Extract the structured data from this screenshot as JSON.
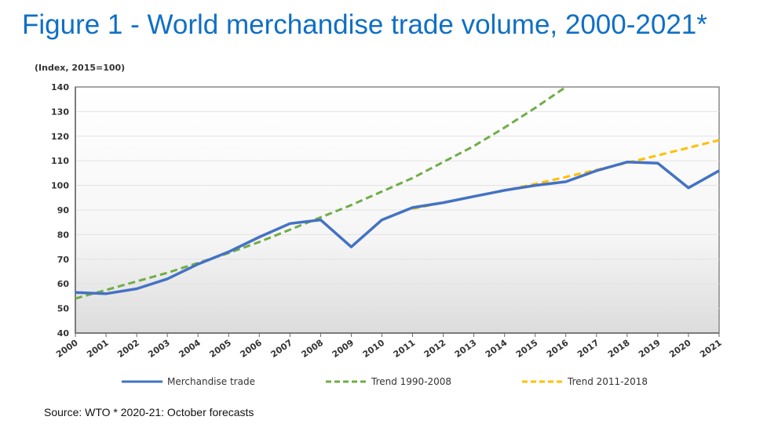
{
  "title": "Figure 1 - World merchandise trade volume, 2000-2021*",
  "source": "Source: WTO  * 2020-21: October forecasts",
  "chart_data": {
    "type": "line",
    "title": "Figure 1 - World merchandise trade volume, 2000-2021*",
    "ylabel": "(Index, 2015=100)",
    "ylim": [
      40,
      140
    ],
    "yticks": [
      40,
      50,
      60,
      70,
      80,
      90,
      100,
      110,
      120,
      130,
      140
    ],
    "grid": true,
    "legend": "bottom",
    "x": [
      "2000",
      "2001",
      "2002",
      "2003",
      "2004",
      "2005",
      "2006",
      "2007",
      "2008",
      "2009",
      "2010",
      "2011",
      "2012",
      "2013",
      "2014",
      "2015",
      "2016",
      "2017",
      "2018",
      "2019",
      "2020",
      "2021"
    ],
    "series": [
      {
        "name": "Merchandise trade",
        "color": "#4472c4",
        "style": "solid",
        "values": [
          56.5,
          56,
          58,
          62,
          68,
          73,
          79,
          84.5,
          86,
          75,
          86,
          91,
          93,
          95.5,
          98,
          100,
          101.5,
          106,
          109.5,
          109,
          99,
          106
        ]
      },
      {
        "name": "Trend 1990-2008",
        "color": "#70ad47",
        "style": "dashed",
        "values": [
          54,
          57.5,
          61,
          64.5,
          68.5,
          72.5,
          77,
          82,
          87,
          92,
          97.5,
          103,
          109.5,
          116,
          123.5,
          131.5,
          140,
          null,
          null,
          null,
          null,
          null
        ]
      },
      {
        "name": "Trend 2011-2018",
        "color": "#ffc000",
        "style": "dashed",
        "values": [
          null,
          null,
          null,
          null,
          null,
          null,
          null,
          null,
          null,
          null,
          null,
          90.5,
          93,
          95.5,
          98,
          100.6,
          103.4,
          106.3,
          109.2,
          112.2,
          115.3,
          118.4
        ]
      }
    ]
  }
}
